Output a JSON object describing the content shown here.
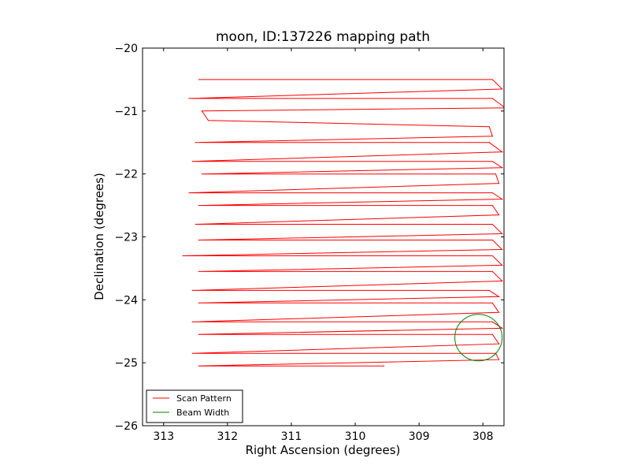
{
  "chart_data": {
    "type": "line",
    "title": "moon, ID:137226 mapping path",
    "xlabel": "Right Ascension (degrees)",
    "ylabel": "Declination (degrees)",
    "xlim": [
      313.33,
      307.67
    ],
    "ylim": [
      -26,
      -20
    ],
    "x_inverted": true,
    "xticks": [
      313,
      312,
      311,
      310,
      309,
      308
    ],
    "xtick_labels": [
      "313",
      "312",
      "311",
      "310",
      "309",
      "308"
    ],
    "yticks": [
      -20,
      -21,
      -22,
      -23,
      -24,
      -25,
      -26
    ],
    "ytick_labels": [
      "−20",
      "−21",
      "−22",
      "−23",
      "−24",
      "−25",
      "−26"
    ],
    "grid": false,
    "legend": {
      "placement": "lower-left",
      "entries": [
        "Scan Pattern",
        "Beam Width"
      ]
    },
    "series": [
      {
        "name": "Scan Pattern",
        "color": "#ff0000",
        "style": "raster scan",
        "left_ra": 312.45,
        "right_ra": 307.85,
        "rows_dec": [
          -20.5,
          -20.8,
          -21.0,
          -21.25,
          -21.5,
          -21.8,
          -22.0,
          -22.3,
          -22.5,
          -22.8,
          -23.05,
          -23.3,
          -23.55,
          -23.85,
          -24.05,
          -24.35,
          -24.55,
          -24.85,
          -25.05
        ],
        "points": [
          {
            "x": 312.45,
            "y": -20.5
          },
          {
            "x": 307.85,
            "y": -20.5
          },
          {
            "x": 307.7,
            "y": -20.65
          },
          {
            "x": 312.6,
            "y": -20.8
          },
          {
            "x": 307.85,
            "y": -20.8
          },
          {
            "x": 307.65,
            "y": -20.95
          },
          {
            "x": 312.4,
            "y": -21.0
          },
          {
            "x": 312.3,
            "y": -21.15
          },
          {
            "x": 307.9,
            "y": -21.25
          },
          {
            "x": 307.85,
            "y": -21.4
          },
          {
            "x": 312.5,
            "y": -21.5
          },
          {
            "x": 307.9,
            "y": -21.5
          },
          {
            "x": 307.7,
            "y": -21.65
          },
          {
            "x": 312.55,
            "y": -21.8
          },
          {
            "x": 307.85,
            "y": -21.8
          },
          {
            "x": 307.7,
            "y": -21.9
          },
          {
            "x": 312.4,
            "y": -22.0
          },
          {
            "x": 307.8,
            "y": -22.0
          },
          {
            "x": 307.75,
            "y": -22.15
          },
          {
            "x": 312.6,
            "y": -22.3
          },
          {
            "x": 307.85,
            "y": -22.3
          },
          {
            "x": 307.7,
            "y": -22.4
          },
          {
            "x": 312.45,
            "y": -22.5
          },
          {
            "x": 307.85,
            "y": -22.5
          },
          {
            "x": 307.75,
            "y": -22.65
          },
          {
            "x": 312.5,
            "y": -22.8
          },
          {
            "x": 307.85,
            "y": -22.8
          },
          {
            "x": 307.7,
            "y": -22.95
          },
          {
            "x": 312.45,
            "y": -23.05
          },
          {
            "x": 307.85,
            "y": -23.05
          },
          {
            "x": 307.7,
            "y": -23.2
          },
          {
            "x": 312.7,
            "y": -23.3
          },
          {
            "x": 307.85,
            "y": -23.3
          },
          {
            "x": 307.7,
            "y": -23.45
          },
          {
            "x": 312.45,
            "y": -23.55
          },
          {
            "x": 307.85,
            "y": -23.55
          },
          {
            "x": 307.7,
            "y": -23.7
          },
          {
            "x": 312.55,
            "y": -23.85
          },
          {
            "x": 307.9,
            "y": -23.85
          },
          {
            "x": 307.75,
            "y": -23.95
          },
          {
            "x": 312.45,
            "y": -24.05
          },
          {
            "x": 307.85,
            "y": -24.05
          },
          {
            "x": 307.75,
            "y": -24.2
          },
          {
            "x": 312.55,
            "y": -24.35
          },
          {
            "x": 307.85,
            "y": -24.35
          },
          {
            "x": 307.7,
            "y": -24.45
          },
          {
            "x": 312.45,
            "y": -24.55
          },
          {
            "x": 307.85,
            "y": -24.55
          },
          {
            "x": 307.75,
            "y": -24.7
          },
          {
            "x": 312.55,
            "y": -24.85
          },
          {
            "x": 307.8,
            "y": -24.85
          },
          {
            "x": 307.75,
            "y": -24.95
          },
          {
            "x": 312.45,
            "y": -25.05
          },
          {
            "x": 309.55,
            "y": -25.05
          }
        ]
      },
      {
        "name": "Beam Width",
        "color": "#008000",
        "shape": "circle",
        "center_ra": 308.07,
        "center_dec": -24.6,
        "radius_deg": 0.37
      }
    ]
  }
}
